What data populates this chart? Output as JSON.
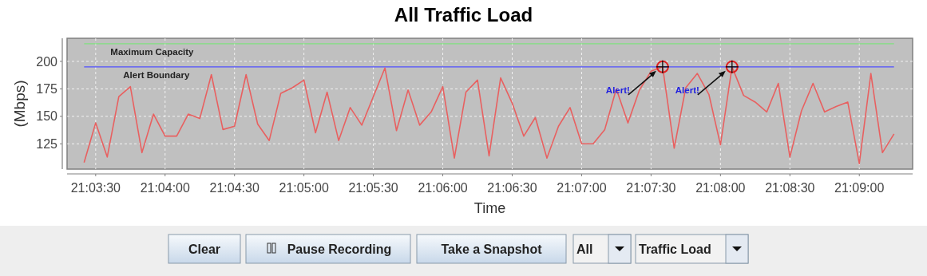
{
  "chart_data": {
    "type": "line",
    "title": "All Traffic Load",
    "xlabel": "Time",
    "ylabel": "(Mbps)",
    "x": [
      21.056944,
      21.058333,
      21.059722,
      21.061111,
      21.0625,
      21.063889,
      21.065278,
      21.066667,
      21.068056,
      21.069444,
      21.070833,
      21.072222,
      21.073611,
      21.075,
      21.076389,
      21.077778,
      21.079167,
      21.080556,
      21.081944,
      21.083333,
      21.084722,
      21.086111,
      21.0875,
      21.088889,
      21.090278,
      21.091667,
      21.093056,
      21.094444,
      21.095833,
      21.097222,
      21.098611,
      21.1,
      21.101389,
      21.102778,
      21.104167,
      21.105556,
      21.106944,
      21.108333,
      21.109722,
      21.111111,
      21.1125,
      21.113889,
      21.115278,
      21.116667,
      21.118056,
      21.119444,
      21.120833,
      21.122222,
      21.123611,
      21.125,
      21.126389,
      21.127778,
      21.129167,
      21.130556,
      21.131944,
      21.133333,
      21.134722,
      21.136111,
      21.1375,
      21.138889,
      21.140278,
      21.141667,
      21.143056,
      21.144444,
      21.145833,
      21.147222,
      21.148611,
      21.15,
      21.151389,
      21.152778,
      21.154167
    ],
    "series": [
      {
        "color": "#e86060",
        "values": [
          108,
          144,
          113,
          168,
          177,
          117,
          152,
          132,
          132,
          152,
          148,
          188,
          138,
          141,
          188,
          143,
          128,
          171,
          176,
          183,
          135,
          172,
          128,
          158,
          142,
          168,
          194,
          137,
          174,
          142,
          154,
          177,
          112,
          172,
          183,
          114,
          185,
          162,
          132,
          149,
          112,
          141,
          158,
          125,
          125,
          138,
          175,
          144,
          174,
          191,
          195,
          121,
          176,
          189,
          170,
          124,
          195,
          169,
          163,
          154,
          180,
          113,
          155,
          180,
          154,
          159,
          163,
          107,
          189,
          117,
          134
        ]
      }
    ],
    "xlim": [
      21.0549,
      21.1564
    ],
    "ylim": [
      102,
      221
    ],
    "yticks": [
      125,
      150,
      175,
      200
    ],
    "xticks": [
      {
        "value": 21.058333,
        "label": "21:03:30"
      },
      {
        "value": 21.066667,
        "label": "21:04:00"
      },
      {
        "value": 21.075,
        "label": "21:04:30"
      },
      {
        "value": 21.083333,
        "label": "21:05:00"
      },
      {
        "value": 21.091667,
        "label": "21:05:30"
      },
      {
        "value": 21.1,
        "label": "21:06:00"
      },
      {
        "value": 21.108333,
        "label": "21:06:30"
      },
      {
        "value": 21.116667,
        "label": "21:07:00"
      },
      {
        "value": 21.125,
        "label": "21:07:30"
      },
      {
        "value": 21.133333,
        "label": "21:08:00"
      },
      {
        "value": 21.141667,
        "label": "21:08:30"
      },
      {
        "value": 21.15,
        "label": "21:09:00"
      }
    ],
    "grid": true,
    "marker": "none",
    "line_style": "solid",
    "ref_lines": [
      {
        "axis": "y",
        "value": 216,
        "label": "Maximum Capacity",
        "color": "#80e080"
      },
      {
        "axis": "y",
        "value": 195,
        "label": "Alert Boundary",
        "color": "#5050ff"
      }
    ],
    "annotations": [
      "Alert!",
      "Alert!",
      "Clear",
      "Pause Recording",
      "Take a Snapshot",
      "All",
      "Traffic Load"
    ]
  }
}
